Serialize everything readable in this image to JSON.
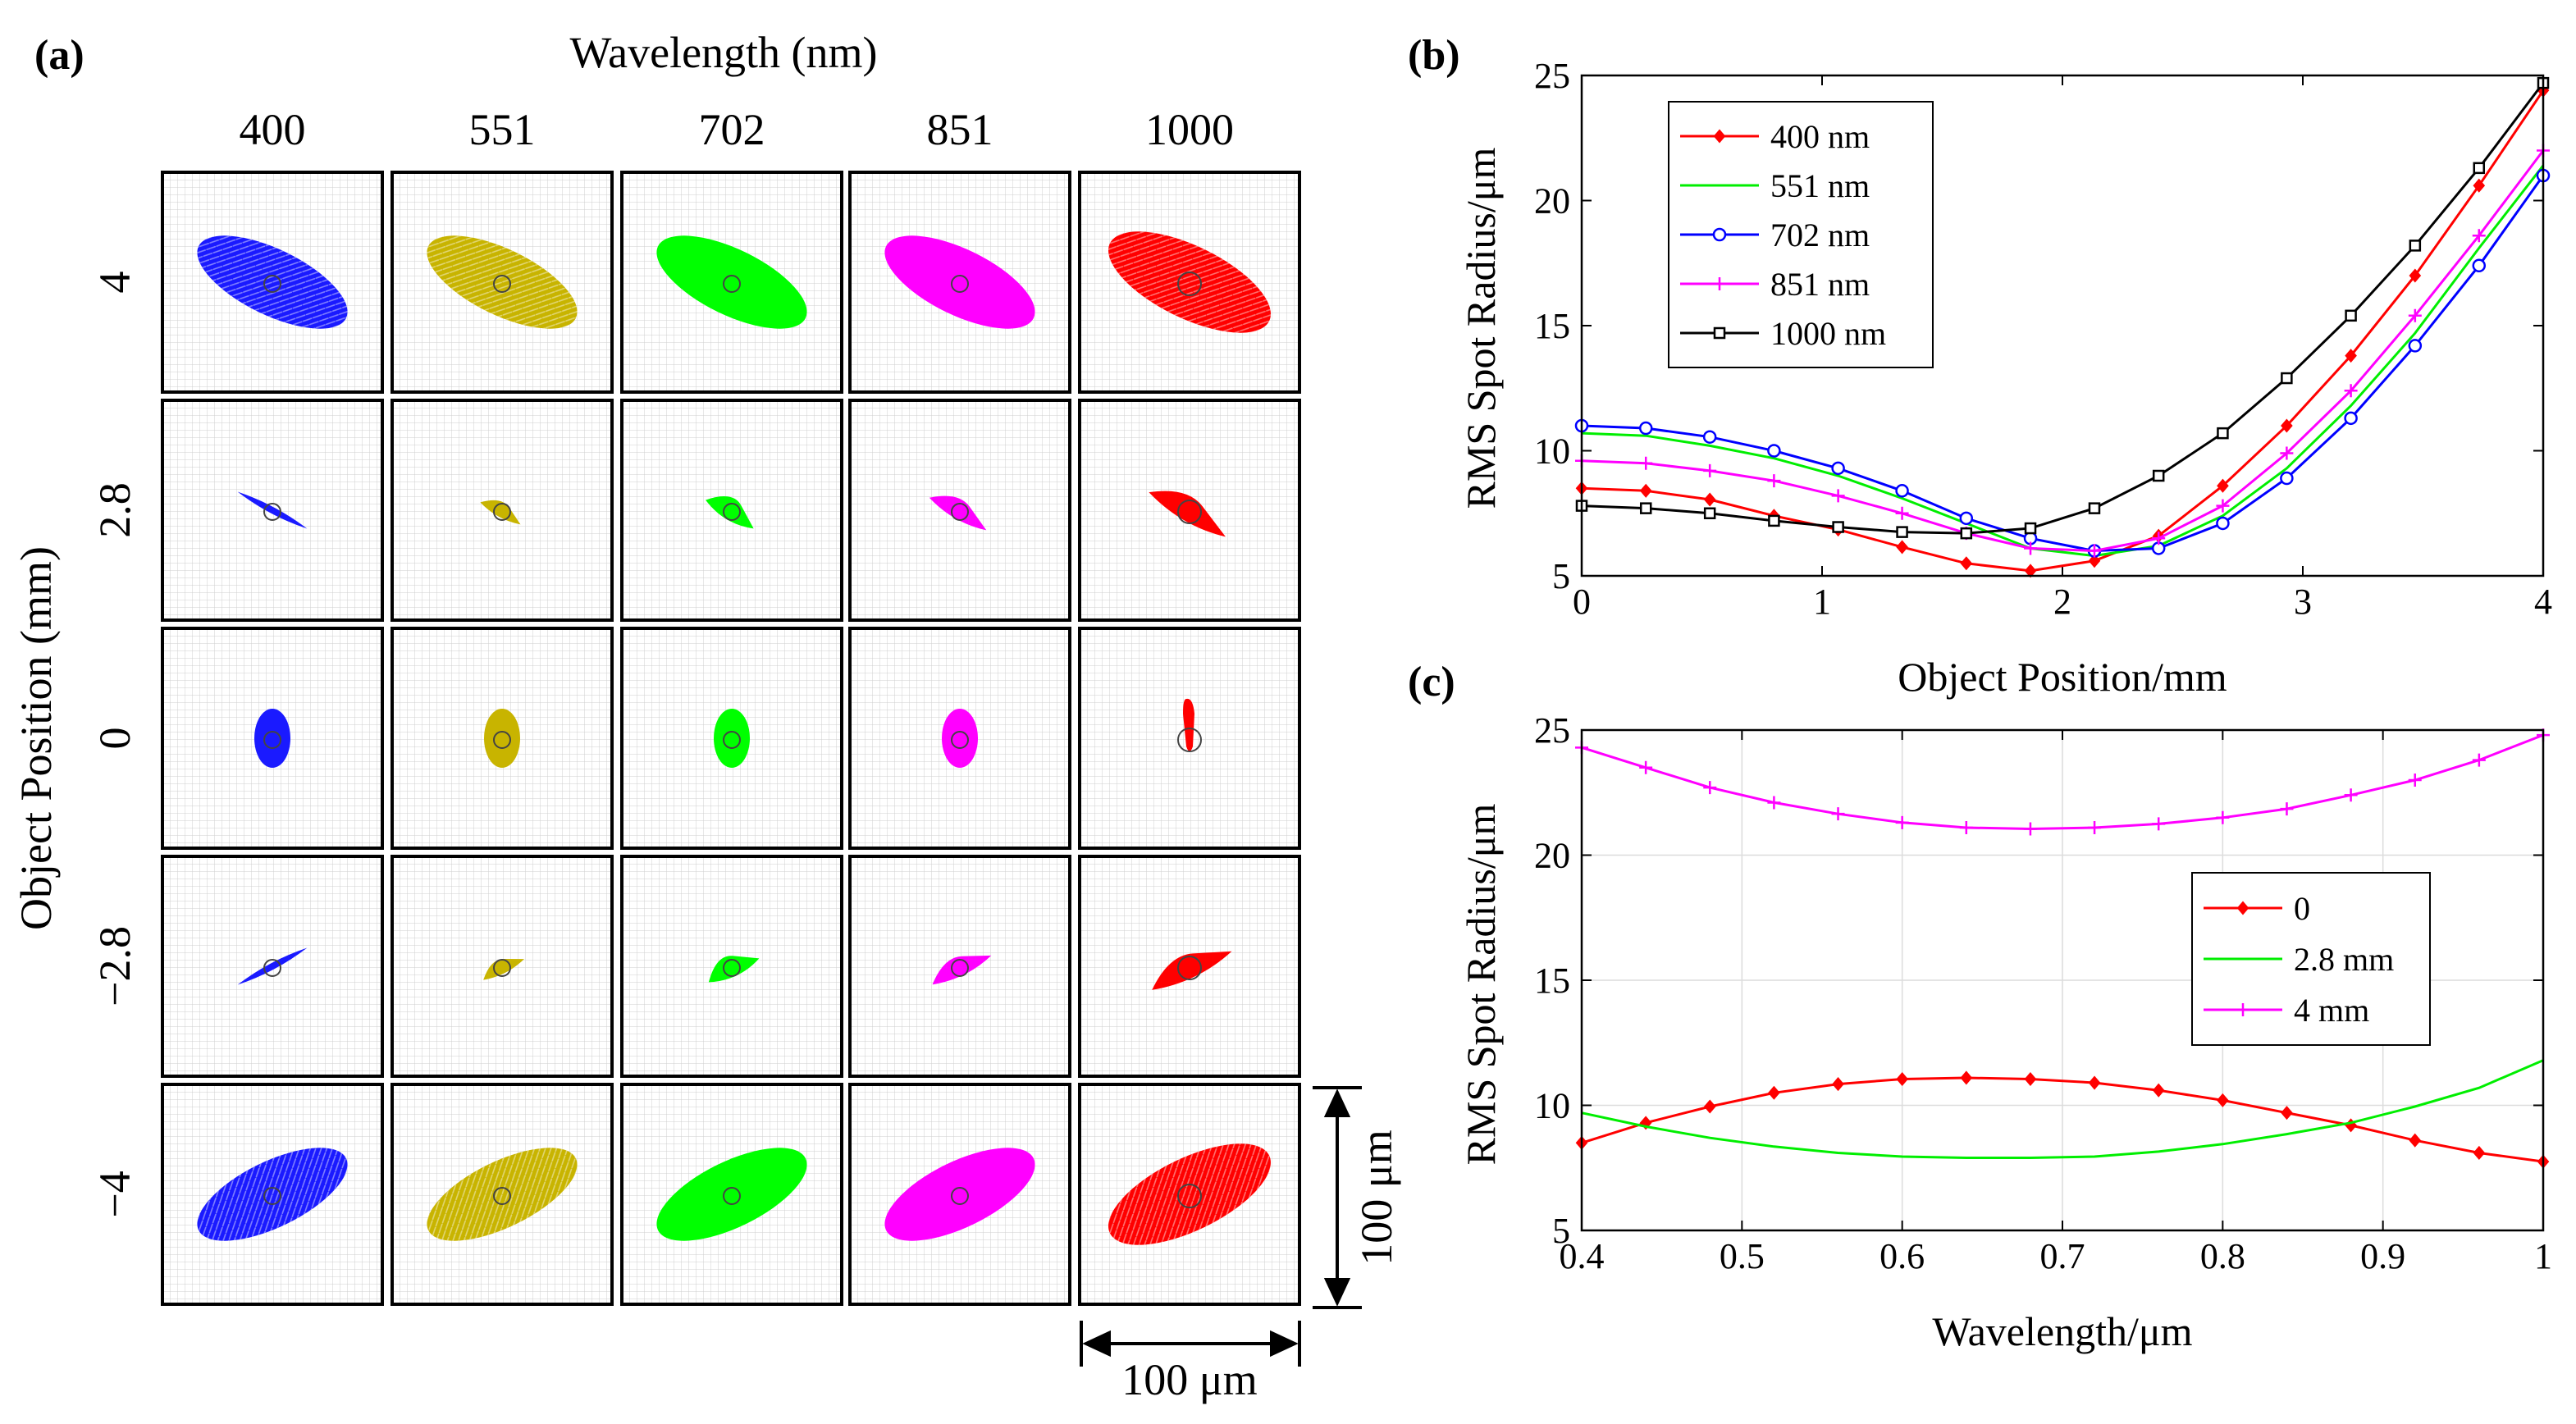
{
  "panel_a": {
    "label": "(a)",
    "title": "Wavelength (nm)",
    "column_labels": [
      "400",
      "551",
      "702",
      "851",
      "1000"
    ],
    "row_labels": [
      "4",
      "2.8",
      "0",
      "−2.8",
      "−4"
    ],
    "ylabel": "Object Position (mm)",
    "scale_vertical": "100 μm",
    "scale_horizontal": "100 μm",
    "column_colors": [
      "#1a1aff",
      "#c8b400",
      "#00ff00",
      "#ff00ff",
      "#ff0000"
    ]
  },
  "chart_data": [
    {
      "label": "(b)",
      "type": "line",
      "xlabel": "Object Position/mm",
      "ylabel": "RMS Spot Radius/μm",
      "xlim": [
        0,
        4
      ],
      "ylim": [
        5,
        25
      ],
      "xticks": [
        "0",
        "1",
        "2",
        "3",
        "4"
      ],
      "yticks": [
        "5",
        "10",
        "15",
        "20",
        "25"
      ],
      "grid": false,
      "legend_position": "top-left",
      "x": [
        0,
        0.267,
        0.533,
        0.8,
        1.067,
        1.333,
        1.6,
        1.867,
        2.133,
        2.4,
        2.667,
        2.933,
        3.2,
        3.467,
        3.733,
        4.0
      ],
      "series": [
        {
          "name": "400 nm",
          "color": "#ff0000",
          "marker": "diamond",
          "values": [
            8.5,
            8.4,
            8.05,
            7.4,
            6.85,
            6.15,
            5.5,
            5.2,
            5.6,
            6.6,
            8.6,
            11.0,
            13.8,
            17.0,
            20.6,
            24.4
          ]
        },
        {
          "name": "551 nm",
          "color": "#00ee00",
          "marker": "none",
          "values": [
            10.7,
            10.6,
            10.2,
            9.7,
            9.0,
            8.1,
            7.1,
            6.1,
            5.8,
            6.2,
            7.4,
            9.3,
            11.8,
            14.7,
            18.1,
            21.4
          ]
        },
        {
          "name": "702 nm",
          "color": "#0000ff",
          "marker": "circle",
          "values": [
            11.0,
            10.9,
            10.55,
            10.0,
            9.3,
            8.4,
            7.3,
            6.5,
            6.0,
            6.1,
            7.1,
            8.9,
            11.3,
            14.2,
            17.4,
            21.0
          ]
        },
        {
          "name": "851 nm",
          "color": "#ff00ff",
          "marker": "plus",
          "values": [
            9.6,
            9.5,
            9.2,
            8.8,
            8.2,
            7.5,
            6.7,
            6.1,
            6.0,
            6.5,
            7.8,
            9.9,
            12.4,
            15.4,
            18.6,
            22.0
          ]
        },
        {
          "name": "1000 nm",
          "color": "#000000",
          "marker": "square",
          "values": [
            7.8,
            7.7,
            7.5,
            7.2,
            6.95,
            6.75,
            6.7,
            6.9,
            7.7,
            9.0,
            10.7,
            12.9,
            15.4,
            18.2,
            21.3,
            24.7
          ]
        }
      ]
    },
    {
      "label": "(c)",
      "type": "line",
      "xlabel": "Wavelength/μm",
      "ylabel": "RMS Spot Radius/μm",
      "xlim": [
        0.4,
        1.0
      ],
      "ylim": [
        5,
        25
      ],
      "xticks": [
        "0.4",
        "0.5",
        "0.6",
        "0.7",
        "0.8",
        "0.9",
        "1"
      ],
      "yticks": [
        "5",
        "10",
        "15",
        "20",
        "25"
      ],
      "grid": true,
      "legend_position": "center-right",
      "x": [
        0.4,
        0.44,
        0.48,
        0.52,
        0.56,
        0.6,
        0.64,
        0.68,
        0.72,
        0.76,
        0.8,
        0.84,
        0.88,
        0.92,
        0.96,
        1.0
      ],
      "series": [
        {
          "name": "0",
          "color": "#ff0000",
          "marker": "diamond",
          "values": [
            8.5,
            9.3,
            9.95,
            10.5,
            10.85,
            11.05,
            11.1,
            11.05,
            10.9,
            10.6,
            10.2,
            9.7,
            9.2,
            8.6,
            8.1,
            7.75
          ]
        },
        {
          "name": "2.8 mm",
          "color": "#00ee00",
          "marker": "none",
          "values": [
            9.7,
            9.15,
            8.7,
            8.35,
            8.1,
            7.95,
            7.9,
            7.9,
            7.95,
            8.15,
            8.45,
            8.85,
            9.3,
            9.95,
            10.7,
            11.8
          ]
        },
        {
          "name": "4 mm",
          "color": "#ff00ff",
          "marker": "plus",
          "values": [
            24.3,
            23.5,
            22.7,
            22.1,
            21.65,
            21.3,
            21.1,
            21.05,
            21.1,
            21.25,
            21.5,
            21.85,
            22.4,
            23.0,
            23.8,
            24.8
          ]
        }
      ]
    }
  ]
}
